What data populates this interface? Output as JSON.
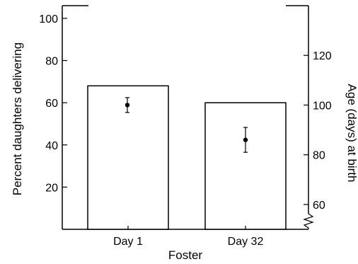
{
  "chart_data": {
    "type": "bar",
    "xlabel": "Foster",
    "categories": [
      "Day 1",
      "Day 32"
    ],
    "bars": {
      "ylabel": "Percent daughters delivering",
      "values": [
        68,
        60
      ],
      "ylim": [
        0,
        106
      ],
      "ticks": [
        20,
        40,
        60,
        80,
        100
      ],
      "tick_labels": [
        "20",
        "40",
        "60",
        "80",
        "100"
      ]
    },
    "points": {
      "ylabel": "Age (days) at birth",
      "axis": "right",
      "values": [
        100,
        86
      ],
      "error": [
        [
          97,
          103
        ],
        [
          81,
          91
        ]
      ],
      "ylim": [
        50,
        140
      ],
      "ticks": [
        60,
        80,
        100,
        120
      ],
      "tick_labels": [
        "60",
        "80",
        "100",
        "120"
      ],
      "axis_break": true
    },
    "grid": false,
    "legend": "none"
  }
}
